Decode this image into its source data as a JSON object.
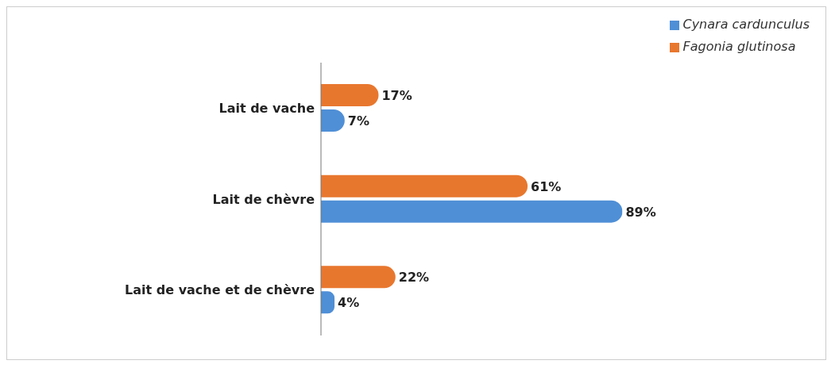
{
  "chart_data": {
    "type": "bar",
    "orientation": "horizontal",
    "categories": [
      "Lait de vache",
      "Lait de chèvre",
      "Lait de vache et de chèvre"
    ],
    "legend": "top right",
    "series": [
      {
        "name": "Fagonia glutinosa",
        "color": "#e8772e",
        "values": [
          17,
          61,
          22
        ],
        "value_labels": [
          "17%",
          "61%",
          "22%"
        ]
      },
      {
        "name": "Cynara cardunculus",
        "color": "#4f8fd6",
        "values": [
          7,
          89,
          4
        ],
        "value_labels": [
          "7%",
          "89%",
          "4%"
        ]
      }
    ]
  }
}
